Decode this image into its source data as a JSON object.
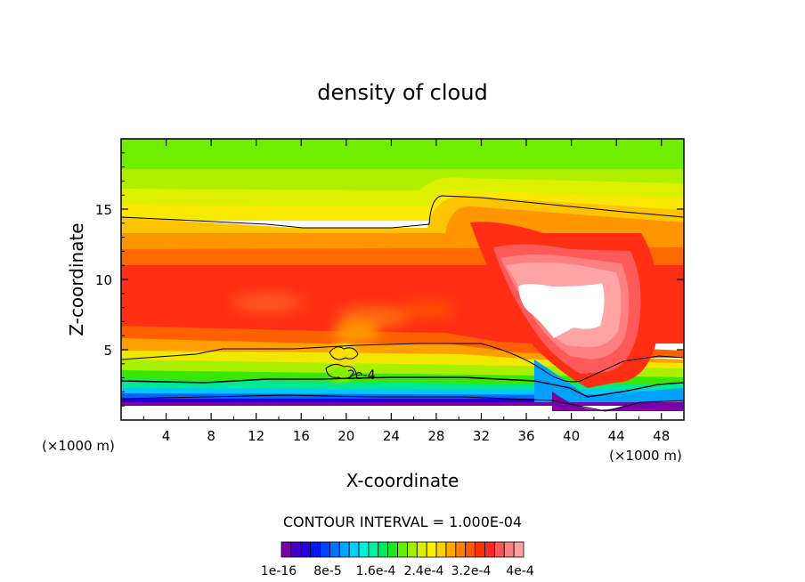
{
  "chart_data": {
    "type": "heatmap",
    "title": "density of cloud",
    "xlabel": "X-coordinate",
    "ylabel": "Z-coordinate",
    "x_unit": "(×1000 m)",
    "z_unit": "(×1000 m)",
    "xlim": [
      0,
      50
    ],
    "ylim": [
      0,
      20
    ],
    "x_ticks": [
      4,
      8,
      12,
      16,
      20,
      24,
      28,
      32,
      36,
      40,
      44,
      48
    ],
    "y_ticks": [
      5,
      10,
      15
    ],
    "contour_interval_label": "CONTOUR INTERVAL = 1.000E-04",
    "contour_label": "2e-4",
    "colorbar_labels": [
      "1e-16",
      "8e-5",
      "1.6e-4",
      "2.4e-4",
      "3.2e-4",
      "4e-4"
    ],
    "colorbar_colors": [
      "#7a00a8",
      "#4400c8",
      "#2200e0",
      "#0018f4",
      "#0044ff",
      "#0074ff",
      "#00a4ff",
      "#00d0ff",
      "#00f0e0",
      "#00f0a0",
      "#00e860",
      "#20e820",
      "#60f000",
      "#a0f000",
      "#d8f000",
      "#f8f000",
      "#ffd000",
      "#ffa800",
      "#ff8000",
      "#ff5800",
      "#ff3000",
      "#ff2828",
      "#ff5858",
      "#ff8080",
      "#ffa0a0"
    ],
    "levels": [
      0,
      2e-05,
      4e-05,
      6e-05,
      8e-05,
      0.0001,
      0.00012,
      0.00014,
      0.00016,
      0.00018,
      0.0002,
      0.00022,
      0.00024,
      0.00026,
      0.00028,
      0.0003,
      0.00032,
      0.00034,
      0.00036,
      0.00038,
      0.0004,
      0.00042,
      0.00044,
      0.00046,
      0.00048
    ],
    "cloud_base_km": 1.5,
    "max_region": {
      "x_range": [
        35.5,
        43.0
      ],
      "z_range": [
        5.8,
        9.6
      ],
      "value": ">4.8e-4"
    }
  }
}
